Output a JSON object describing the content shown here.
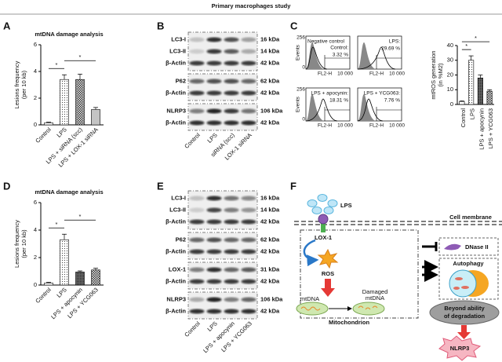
{
  "title": "Primary macrophages study",
  "panels": [
    "A",
    "B",
    "C",
    "D",
    "E",
    "F"
  ],
  "chart_data": [
    {
      "type": "bar",
      "title": "mtDNA damage analysis",
      "y_label": [
        "Lesions frequency",
        "(per 10 kb)"
      ],
      "categories": [
        "Control",
        "LPS",
        "LPS + siRNA (scc)",
        "LPS + LOX-1 siRNA"
      ],
      "values": [
        0.15,
        3.4,
        3.4,
        1.15
      ],
      "errors": [
        0.05,
        0.35,
        0.4,
        0.15
      ],
      "ylim": [
        0,
        6
      ],
      "yticks": [
        0,
        2,
        4,
        6
      ],
      "fills": [
        "#ffffff",
        "url(#dots)",
        "url(#checker)",
        "url(#fine)"
      ],
      "significance": [
        {
          "from": 0,
          "to": 1,
          "label": "*"
        },
        {
          "from": 1,
          "to": 3,
          "label": "*"
        }
      ]
    },
    {
      "type": "bar",
      "y_label": [
        "mtROS generation",
        "(in %M2)"
      ],
      "categories": [
        "Control",
        "LPS",
        "LPS + apocynin",
        "LPS + YCG063"
      ],
      "values": [
        2,
        30,
        18,
        9
      ],
      "errors": [
        0.5,
        3,
        2,
        1
      ],
      "ylim": [
        0,
        40
      ],
      "yticks": [
        0,
        10,
        20,
        30,
        40
      ],
      "fills": [
        "#ffffff",
        "url(#dots)",
        "url(#hatch)",
        "url(#checker)"
      ],
      "significance": [
        {
          "from": 0,
          "to": 1,
          "label": "*"
        },
        {
          "from": 0,
          "to": 3,
          "label": "*"
        }
      ]
    },
    {
      "type": "bar",
      "title": "mtDNA damage analysis",
      "y_label": [
        "Lesions frequency",
        "(per 10 kb)"
      ],
      "categories": [
        "Control",
        "LPS",
        "LPS + apocynin",
        "LPS + YCG063"
      ],
      "values": [
        0.15,
        3.3,
        0.95,
        1.1
      ],
      "errors": [
        0.05,
        0.4,
        0.08,
        0.12
      ],
      "ylim": [
        0,
        6
      ],
      "yticks": [
        0,
        2,
        4,
        6
      ],
      "fills": [
        "#ffffff",
        "url(#dots)",
        "url(#hatch)",
        "url(#checker)"
      ],
      "significance": [
        {
          "from": 0,
          "to": 1,
          "label": "*"
        },
        {
          "from": 1,
          "to": 3,
          "label": "*"
        }
      ]
    }
  ],
  "flow": {
    "y_label": "Events",
    "y_max": "256",
    "y_min": "0",
    "x_label": "FL2-H",
    "x_max": "10 000",
    "plots": [
      {
        "note": "Negative control",
        "label": "Control:",
        "percent": "3.32 %"
      },
      {
        "label": "LPS:",
        "percent": "29.69 %"
      },
      {
        "label": "LPS + apocynin:",
        "percent": "18.31 %"
      },
      {
        "label": "LPS + YCG063:",
        "percent": "7.76 %"
      }
    ]
  },
  "blots": [
    {
      "groups": [
        [
          {
            "label": "LC3-I",
            "size": "16 kDa"
          },
          {
            "label": "LC3-II",
            "size": "14 kDa"
          },
          {
            "label": "β-Actin",
            "size": "42 kDa"
          }
        ],
        [
          {
            "label": "P62",
            "size": "62 kDa"
          },
          {
            "label": "β-Actin",
            "size": "42 kDa"
          }
        ],
        [
          {
            "label": "NLRP3",
            "size": "106 kDa"
          },
          {
            "label": "β-Actin",
            "size": "42 kDa"
          }
        ]
      ],
      "lanes": [
        "Control",
        "LPS",
        "siRNA (scc)",
        "LOX-1 siRNA"
      ]
    },
    {
      "groups": [
        [
          {
            "label": "LC3-I",
            "size": "16 kDa"
          },
          {
            "label": "LC3-II",
            "size": "14 kDa"
          },
          {
            "label": "β-Actin",
            "size": "42 kDa"
          }
        ],
        [
          {
            "label": "P62",
            "size": "62 kDa"
          },
          {
            "label": "β-Actin",
            "size": "42 kDa"
          }
        ],
        [
          {
            "label": "LOX-1",
            "size": "31 kDa"
          },
          {
            "label": "β-Actin",
            "size": "42 kDa"
          }
        ],
        [
          {
            "label": "NLRP3",
            "size": "106 kDa"
          },
          {
            "label": "β-Actin",
            "size": "42 kDa"
          }
        ]
      ],
      "lanes": [
        "Control",
        "LPS",
        "LPS + apocynin",
        "LPS + YCG063"
      ]
    }
  ],
  "diagram": {
    "lps": "LPS",
    "membrane": "Cell membrane",
    "receptor": "LOX-1",
    "ros": "ROS",
    "mtdna": "mtDNA",
    "damaged": [
      "Damaged",
      "mtDNA"
    ],
    "mitochondrion": "Mitochondrion",
    "dnase": "DNase II",
    "autophagy": "Autophagy",
    "beyond": [
      "Beyond ability",
      "of degradation"
    ],
    "nlrp3": "NLRP3"
  }
}
